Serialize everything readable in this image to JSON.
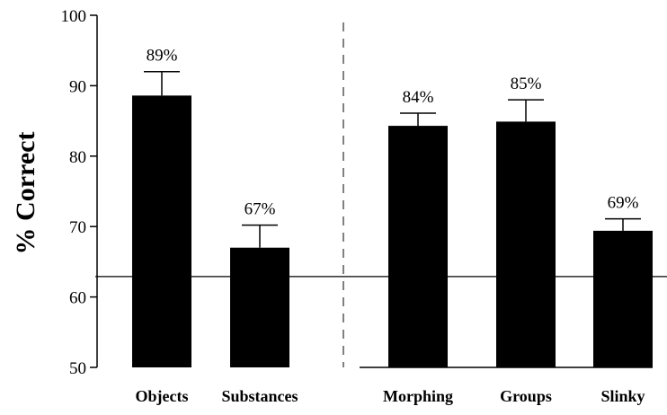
{
  "chart_data": {
    "type": "bar",
    "ylabel": "% Correct",
    "xlabel": "",
    "title": "",
    "ylim": [
      50,
      100
    ],
    "yticks": [
      "50",
      "60",
      "70",
      "80",
      "90",
      "100"
    ],
    "categories": [
      "Objects",
      "Substances",
      "Morphing",
      "Groups",
      "Slinky"
    ],
    "values": [
      88.6,
      67.0,
      84.3,
      84.9,
      69.4
    ],
    "error_upper": [
      92.0,
      70.2,
      86.1,
      88.0,
      71.1
    ],
    "data_labels": [
      "89%",
      "67%",
      "84%",
      "85%",
      "69%"
    ],
    "groups": [
      {
        "categories": [
          "Objects",
          "Substances"
        ]
      },
      {
        "categories": [
          "Morphing",
          "Groups",
          "Slinky"
        ]
      }
    ],
    "reference_line": 62.9,
    "group_separator": "dashed",
    "grid": false,
    "bar_color": "#000000"
  }
}
